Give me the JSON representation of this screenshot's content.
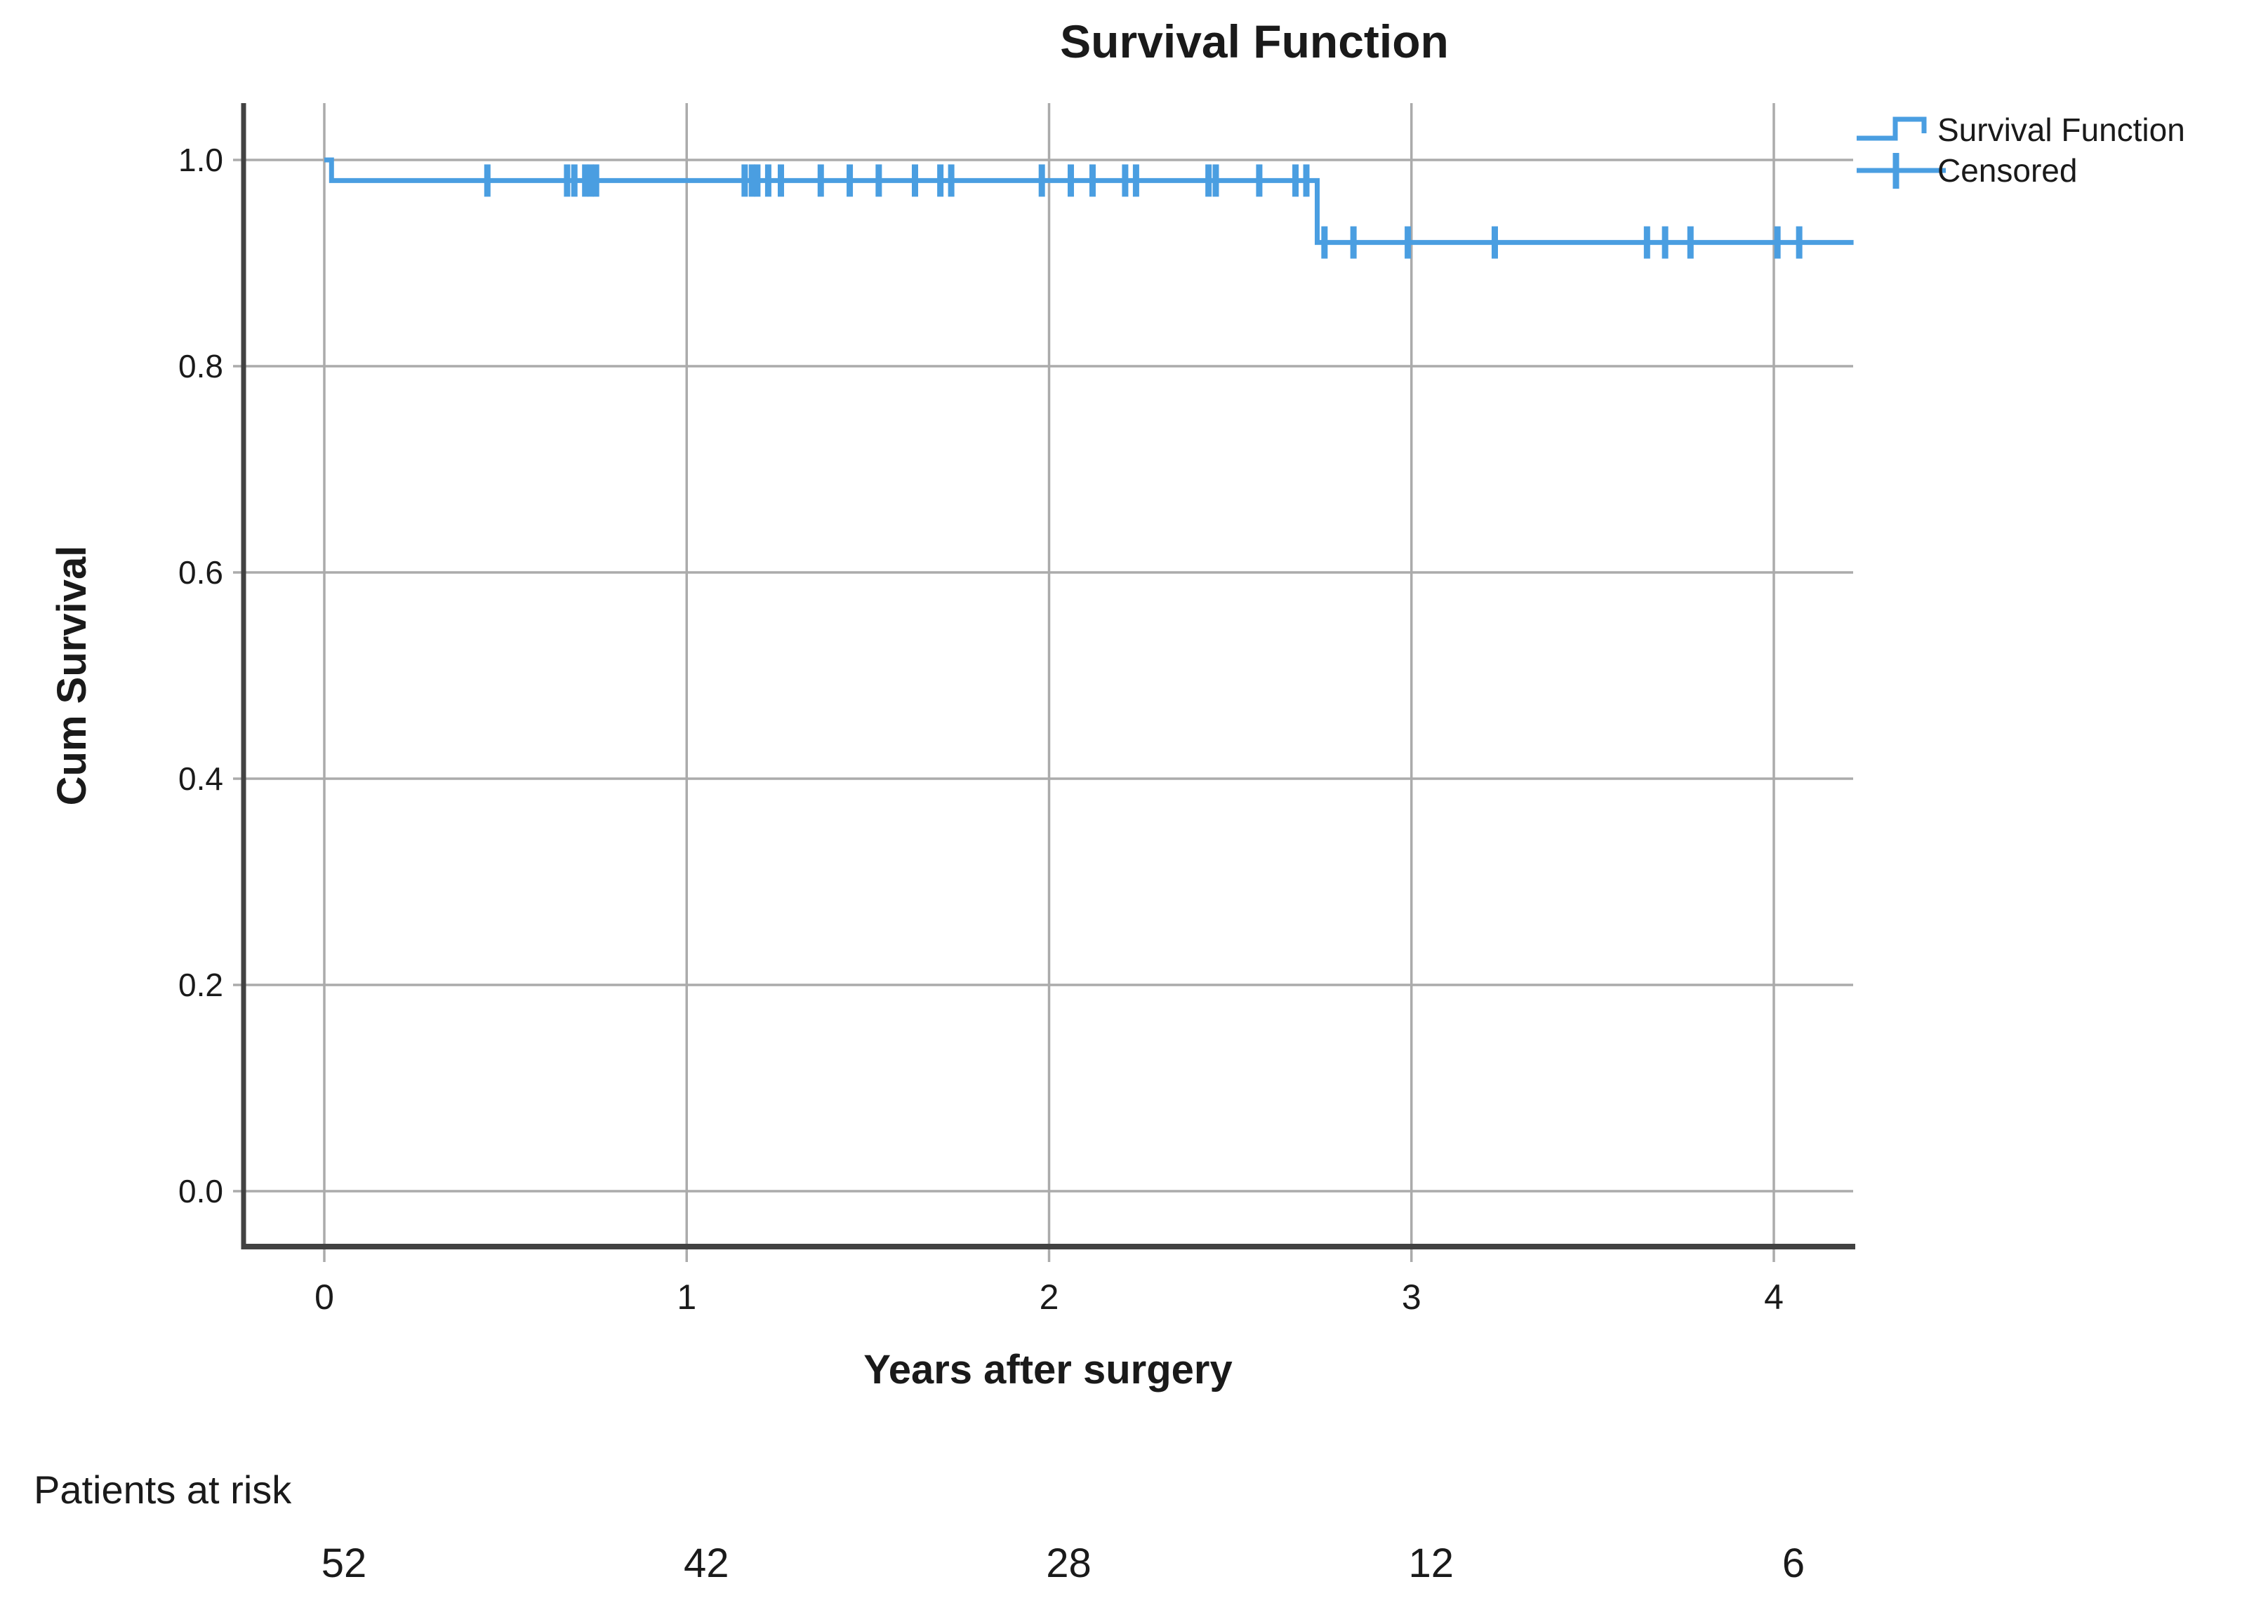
{
  "chart_data": {
    "type": "line",
    "subtype": "kaplan-meier-step",
    "title": "Survival Function",
    "xlabel": "Years after surgery",
    "ylabel": "Cum Survival",
    "x_ticks": [
      0,
      1,
      2,
      3,
      4
    ],
    "y_ticks": [
      0.0,
      0.2,
      0.4,
      0.6,
      0.8,
      1.0
    ],
    "xlim": [
      -0.22,
      4.22
    ],
    "ylim": [
      -0.05,
      1.06
    ],
    "grid": true,
    "legend_position": "top-right",
    "legend": [
      "Survival Function",
      "Censored"
    ],
    "series": [
      {
        "name": "Survival Function",
        "type": "step",
        "color": "#4A9EE1",
        "points": [
          [
            0,
            1.0
          ],
          [
            0.02,
            1.0
          ],
          [
            0.02,
            0.98
          ],
          [
            2.74,
            0.98
          ],
          [
            2.74,
            0.92
          ],
          [
            4.22,
            0.92
          ]
        ]
      }
    ],
    "censored": {
      "marker": "plus",
      "color": "#4A9EE1",
      "points": [
        [
          0.45,
          0.98
        ],
        [
          0.67,
          0.98
        ],
        [
          0.69,
          0.98
        ],
        [
          0.72,
          0.98
        ],
        [
          0.735,
          0.98
        ],
        [
          0.75,
          0.98
        ],
        [
          1.16,
          0.98
        ],
        [
          1.18,
          0.98
        ],
        [
          1.195,
          0.98
        ],
        [
          1.225,
          0.98
        ],
        [
          1.26,
          0.98
        ],
        [
          1.37,
          0.98
        ],
        [
          1.45,
          0.98
        ],
        [
          1.53,
          0.98
        ],
        [
          1.63,
          0.98
        ],
        [
          1.7,
          0.98
        ],
        [
          1.73,
          0.98
        ],
        [
          1.98,
          0.98
        ],
        [
          2.06,
          0.98
        ],
        [
          2.12,
          0.98
        ],
        [
          2.21,
          0.98
        ],
        [
          2.24,
          0.98
        ],
        [
          2.44,
          0.98
        ],
        [
          2.46,
          0.98
        ],
        [
          2.58,
          0.98
        ],
        [
          2.68,
          0.98
        ],
        [
          2.71,
          0.98
        ],
        [
          2.76,
          0.92
        ],
        [
          2.84,
          0.92
        ],
        [
          2.99,
          0.92
        ],
        [
          3.23,
          0.92
        ],
        [
          3.65,
          0.92
        ],
        [
          3.7,
          0.92
        ],
        [
          3.77,
          0.92
        ],
        [
          4.01,
          0.92
        ],
        [
          4.07,
          0.92
        ]
      ]
    },
    "at_risk": {
      "label": "Patients at risk",
      "times": [
        0,
        1,
        2,
        3,
        4
      ],
      "values": [
        52,
        42,
        28,
        12,
        6
      ]
    }
  },
  "colors": {
    "line": "#4A9EE1",
    "grid": "#ABABAB",
    "axis": "#424242",
    "text": "#1A1A1A",
    "background": "#FFFFFF"
  }
}
